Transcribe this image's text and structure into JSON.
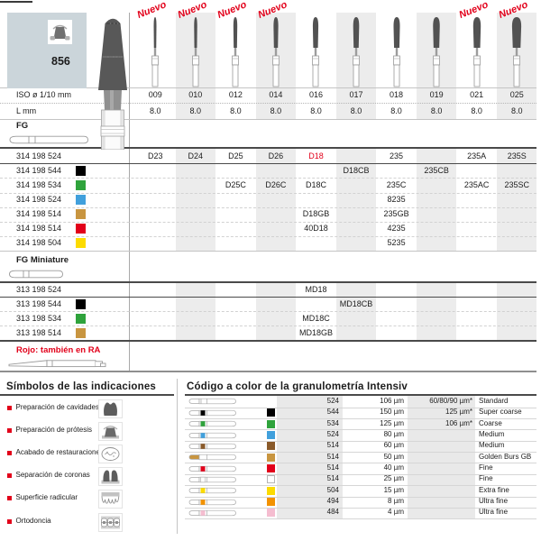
{
  "page": {
    "figure_number": "856",
    "nuevo_label": "Nuevo",
    "iso_row_label": "ISO ø 1/10 mm",
    "l_row_label": "L mm",
    "fg_label": "FG",
    "fg_miniature_label": "FG Miniature",
    "ra_note": "Rojo: también en RA"
  },
  "colors": {
    "accent_red": "#e2001a",
    "panel_blue": "#cbd5da",
    "stripe_gray": "#ececec",
    "black": "#000000",
    "green": "#2fa33c",
    "blue": "#41a0dc",
    "golden": "#c89540",
    "yellow": "#fcdb00",
    "brown": "#8a5a2a",
    "orange": "#f39200",
    "pink": "#f5bdd0",
    "white": "#ffffff"
  },
  "columns": [
    {
      "iso": "009",
      "l": "8.0",
      "nuevo": true
    },
    {
      "iso": "010",
      "l": "8.0",
      "nuevo": true
    },
    {
      "iso": "012",
      "l": "8.0",
      "nuevo": true
    },
    {
      "iso": "014",
      "l": "8.0",
      "nuevo": true
    },
    {
      "iso": "016",
      "l": "8.0",
      "nuevo": false
    },
    {
      "iso": "017",
      "l": "8.0",
      "nuevo": false
    },
    {
      "iso": "018",
      "l": "8.0",
      "nuevo": false
    },
    {
      "iso": "019",
      "l": "8.0",
      "nuevo": false
    },
    {
      "iso": "021",
      "l": "8.0",
      "nuevo": true
    },
    {
      "iso": "025",
      "l": "8.0",
      "nuevo": true
    }
  ],
  "fg_rows": [
    {
      "code": "314 198 524",
      "color": null,
      "cells": [
        "D23",
        "D24",
        "D25",
        "D26",
        "D18",
        null,
        "235",
        null,
        "235A",
        "235S"
      ],
      "red_cells": [
        4
      ]
    },
    {
      "code": "314 198 544",
      "color": "black",
      "cells": [
        null,
        null,
        null,
        null,
        null,
        "D18CB",
        null,
        "235CB",
        null,
        null
      ],
      "red_cells": []
    },
    {
      "code": "314 198 534",
      "color": "green",
      "cells": [
        null,
        null,
        "D25C",
        "D26C",
        "D18C",
        null,
        "235C",
        null,
        "235AC",
        "235SC"
      ],
      "red_cells": []
    },
    {
      "code": "314 198 524",
      "color": "blue",
      "cells": [
        null,
        null,
        null,
        null,
        null,
        null,
        "8235",
        null,
        null,
        null
      ],
      "red_cells": []
    },
    {
      "code": "314 198 514",
      "color": "golden",
      "cells": [
        null,
        null,
        null,
        null,
        "D18GB",
        null,
        "235GB",
        null,
        null,
        null
      ],
      "red_cells": []
    },
    {
      "code": "314 198 514",
      "color": "accent_red",
      "cells": [
        null,
        null,
        null,
        null,
        "40D18",
        null,
        "4235",
        null,
        null,
        null
      ],
      "red_cells": []
    },
    {
      "code": "314 198 504",
      "color": "yellow",
      "cells": [
        null,
        null,
        null,
        null,
        null,
        null,
        "5235",
        null,
        null,
        null
      ],
      "red_cells": []
    }
  ],
  "fg_miniature_rows": [
    {
      "code": "313 198 524",
      "color": null,
      "cells": [
        null,
        null,
        null,
        null,
        "MD18",
        null,
        null,
        null,
        null,
        null
      ],
      "red_cells": []
    },
    {
      "code": "313 198 544",
      "color": "black",
      "cells": [
        null,
        null,
        null,
        null,
        null,
        "MD18CB",
        null,
        null,
        null,
        null
      ],
      "red_cells": []
    },
    {
      "code": "313 198 534",
      "color": "green",
      "cells": [
        null,
        null,
        null,
        null,
        "MD18C",
        null,
        null,
        null,
        null,
        null
      ],
      "red_cells": []
    },
    {
      "code": "313 198 514",
      "color": "golden",
      "cells": [
        null,
        null,
        null,
        null,
        "MD18GB",
        null,
        null,
        null,
        null,
        null
      ],
      "red_cells": []
    }
  ],
  "symbols": {
    "title": "Símbolos de las indicaciones",
    "items": [
      {
        "label": "Preparación de cavidades",
        "icon": "cavity-prep-icon"
      },
      {
        "label": "Preparación de prótesis",
        "icon": "prosthesis-prep-icon"
      },
      {
        "label": "Acabado de restauraciones",
        "icon": "restoration-finishing-icon"
      },
      {
        "label": "Separación de coronas",
        "icon": "crown-separation-icon"
      },
      {
        "label": "Superficie radicular",
        "icon": "root-surface-icon"
      },
      {
        "label": "Ortodoncia",
        "icon": "orthodontics-icon"
      }
    ]
  },
  "granulometry": {
    "title": "Código a color de la granulometría Intensiv",
    "rows": [
      {
        "color": null,
        "code": "524",
        "grain": "106 µm",
        "alt_grain": "60/80/90 µm*",
        "name": "Standard",
        "golden_head": false
      },
      {
        "color": "black",
        "code": "544",
        "grain": "150 µm",
        "alt_grain": "125 µm*",
        "name": "Super coarse",
        "golden_head": false
      },
      {
        "color": "green",
        "code": "534",
        "grain": "125 µm",
        "alt_grain": "106 µm*",
        "name": "Coarse",
        "golden_head": false
      },
      {
        "color": "blue",
        "code": "524",
        "grain": "80 µm",
        "alt_grain": "",
        "name": "Medium",
        "golden_head": false
      },
      {
        "color": "brown",
        "code": "514",
        "grain": "60 µm",
        "alt_grain": "",
        "name": "Medium",
        "golden_head": false
      },
      {
        "color": "golden",
        "code": "514",
        "grain": "50 µm",
        "alt_grain": "",
        "name": "Golden Burs GB",
        "golden_head": true
      },
      {
        "color": "accent_red",
        "code": "514",
        "grain": "40 µm",
        "alt_grain": "",
        "name": "Fine",
        "golden_head": false
      },
      {
        "color": "white",
        "code": "514",
        "grain": "25 µm",
        "alt_grain": "",
        "name": "Fine",
        "golden_head": false
      },
      {
        "color": "yellow",
        "code": "504",
        "grain": "15 µm",
        "alt_grain": "",
        "name": "Extra fine",
        "golden_head": false
      },
      {
        "color": "orange",
        "code": "494",
        "grain": "8 µm",
        "alt_grain": "",
        "name": "Ultra fine",
        "golden_head": false
      },
      {
        "color": "pink",
        "code": "484",
        "grain": "4 µm",
        "alt_grain": "",
        "name": "Ultra fine",
        "golden_head": false
      }
    ]
  }
}
